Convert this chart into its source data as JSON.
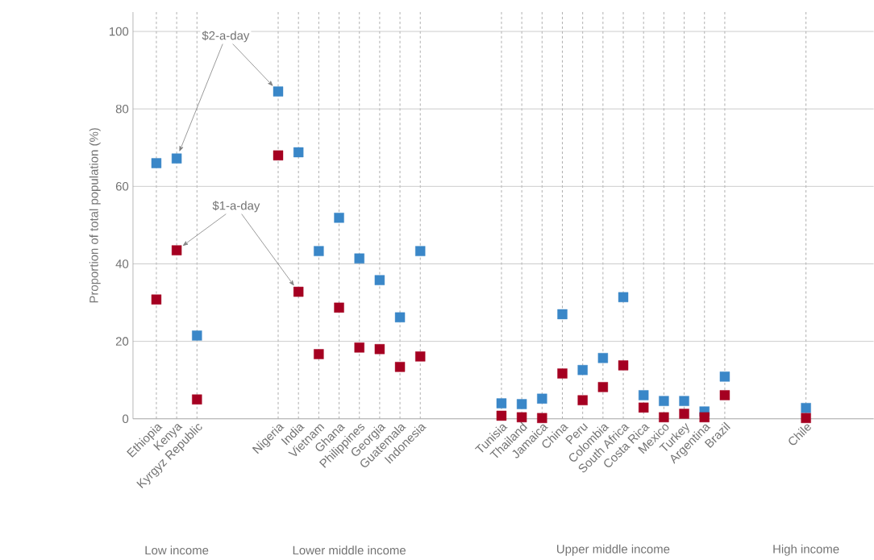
{
  "chart_data": {
    "type": "scatter",
    "ylabel": "Proportion of total population (%)",
    "categories": [
      "Ethiopia",
      "Kenya",
      "Kyrgyz Republic",
      null,
      null,
      null,
      "Nigeria",
      "India",
      "Vietnam",
      "Ghana",
      "Philippines",
      "Georgia",
      "Guatemala",
      "Indonesia",
      null,
      null,
      null,
      "Tunisia",
      "Thailand",
      "Jamaica",
      "China",
      "Peru",
      "Colombia",
      "South Africa",
      "Costa Rica",
      "Mexico",
      "Turkey",
      "Argentina",
      "Brazil",
      null,
      null,
      null,
      "Chile"
    ],
    "series": [
      {
        "name": "$2-a-day",
        "color": "#3a87c8",
        "values": [
          66,
          67.2,
          21.5,
          null,
          null,
          null,
          84.5,
          68.8,
          43.3,
          51.9,
          41.4,
          35.8,
          26.2,
          43.3,
          null,
          null,
          null,
          4.0,
          3.8,
          5.2,
          27.0,
          12.6,
          15.7,
          31.4,
          6.1,
          4.6,
          4.6,
          1.9,
          10.9,
          null,
          null,
          null,
          2.8
        ]
      },
      {
        "name": "$1-a-day",
        "color": "#a50021",
        "values": [
          30.8,
          43.5,
          5.0,
          null,
          null,
          null,
          68.0,
          32.8,
          16.7,
          28.7,
          18.4,
          18.0,
          13.4,
          16.1,
          null,
          null,
          null,
          0.8,
          0.4,
          0.2,
          11.7,
          4.8,
          8.2,
          13.8,
          2.9,
          0.4,
          1.3,
          0.4,
          6.1,
          null,
          null,
          null,
          0.2
        ]
      }
    ],
    "annotations": [
      "Low income",
      "Lower middle income",
      "Upper middle income",
      "High income"
    ],
    "ylim": [
      0,
      105
    ],
    "yticks": [
      0,
      20,
      40,
      60,
      80,
      100
    ],
    "grid": true,
    "marker": "square"
  }
}
